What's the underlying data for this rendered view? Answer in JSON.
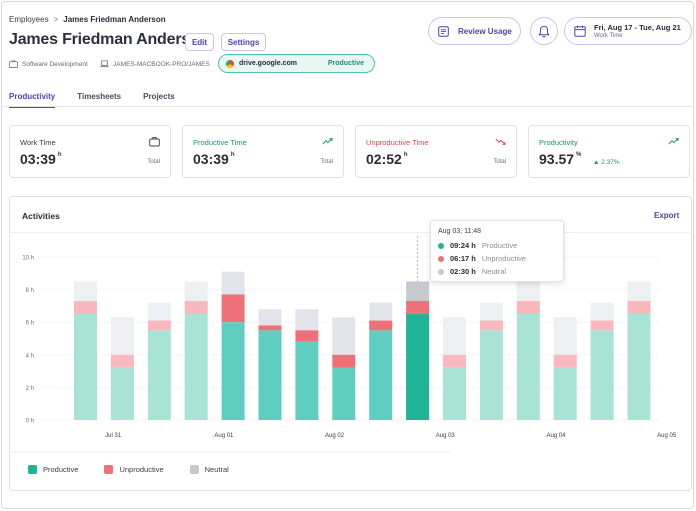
{
  "breadcrumb": {
    "parent": "Employees",
    "separator": ">",
    "current": "James Friedman Anderson"
  },
  "header": {
    "title": "James Friedman Anderson",
    "edit_label": "Edit",
    "settings_label": "Settings",
    "department": "Software Development",
    "device": "JAMES-MACBOOK-PRO/JAMES",
    "url_chip": {
      "host": "drive.google.com",
      "tag": "Productive"
    },
    "review_label": "Review Usage",
    "date_range": "Fri, Aug 17 - Tue, Aug 21",
    "date_sub": "Work Time"
  },
  "tabs": [
    {
      "label": "Productivity",
      "active": true
    },
    {
      "label": "Timesheets",
      "active": false
    },
    {
      "label": "Projects",
      "active": false
    }
  ],
  "kpis": [
    {
      "label": "Work Time",
      "value": "03:39",
      "unit": "h",
      "foot": "Total",
      "color": "#3b3b4a",
      "icon": "briefcase-icon"
    },
    {
      "label": "Productive Time",
      "value": "03:39",
      "unit": "h",
      "foot": "Total",
      "color": "#1f8f70",
      "icon": "trend-up-icon"
    },
    {
      "label": "Unproductive Time",
      "value": "02:52",
      "unit": "h",
      "foot": "Total",
      "color": "#e0454f",
      "icon": "trend-down-icon"
    },
    {
      "label": "Productivity",
      "value": "93.57",
      "unit": "%",
      "delta": "▲ 2.37%",
      "color": "#1f8f70",
      "icon": "trend-up-icon"
    }
  ],
  "activities": {
    "title": "Activities",
    "export_label": "Export"
  },
  "tooltip": {
    "title": "Aug 03, 11:48",
    "rows": [
      {
        "value": "09:24 h",
        "name": "Productive",
        "color": "#20b497"
      },
      {
        "value": "06:17 h",
        "name": "Unproductive",
        "color": "#f0707a"
      },
      {
        "value": "02:30 h",
        "name": "Neutral",
        "color": "#c6c9d0"
      }
    ]
  },
  "legend": [
    {
      "label": "Productive",
      "color": "#20b497"
    },
    {
      "label": "Unproductive",
      "color": "#f0707a"
    },
    {
      "label": "Neutral",
      "color": "#c6c9d0"
    }
  ],
  "colors": {
    "accent": "#4b43b8",
    "productive": "#20b497",
    "productive_light": "#a8e3d6",
    "productive_mid": "#5fcdbf",
    "unproductive": "#f0707a",
    "unproductive_light": "#f8b8bd",
    "neutral": "#eeeff2"
  },
  "chart_data": {
    "type": "bar",
    "stacked": true,
    "y_ticks": [
      "0 h",
      "2 h",
      "4 h",
      "6 h",
      "8 h",
      "10 h"
    ],
    "ylim": [
      0,
      10
    ],
    "x_labels": [
      "Jul 31",
      "Aug 01",
      "Aug 02",
      "Aug 03",
      "Aug 04",
      "Aug 05"
    ],
    "series": [
      {
        "name": "Productive",
        "values": [
          6.5,
          3.2,
          5.5,
          6.5,
          6.0,
          5.5,
          4.8,
          3.2,
          5.5,
          6.5,
          3.2,
          5.5,
          6.5,
          3.2,
          5.5,
          6.5
        ]
      },
      {
        "name": "Unproductive",
        "values": [
          0.8,
          0.8,
          0.6,
          0.8,
          1.7,
          0.3,
          0.7,
          0.8,
          0.6,
          0.8,
          0.8,
          0.6,
          0.8,
          0.8,
          0.6,
          0.8
        ]
      },
      {
        "name": "Neutral",
        "values": [
          1.2,
          2.3,
          1.1,
          1.2,
          1.4,
          1.0,
          1.3,
          2.3,
          1.1,
          1.2,
          2.3,
          1.1,
          1.2,
          2.3,
          1.1,
          1.2
        ]
      }
    ],
    "highlight_dark": [
      false,
      false,
      false,
      false,
      true,
      true,
      true,
      true,
      true,
      false,
      false,
      false,
      false,
      false,
      false,
      false
    ],
    "selected_index": 9
  }
}
